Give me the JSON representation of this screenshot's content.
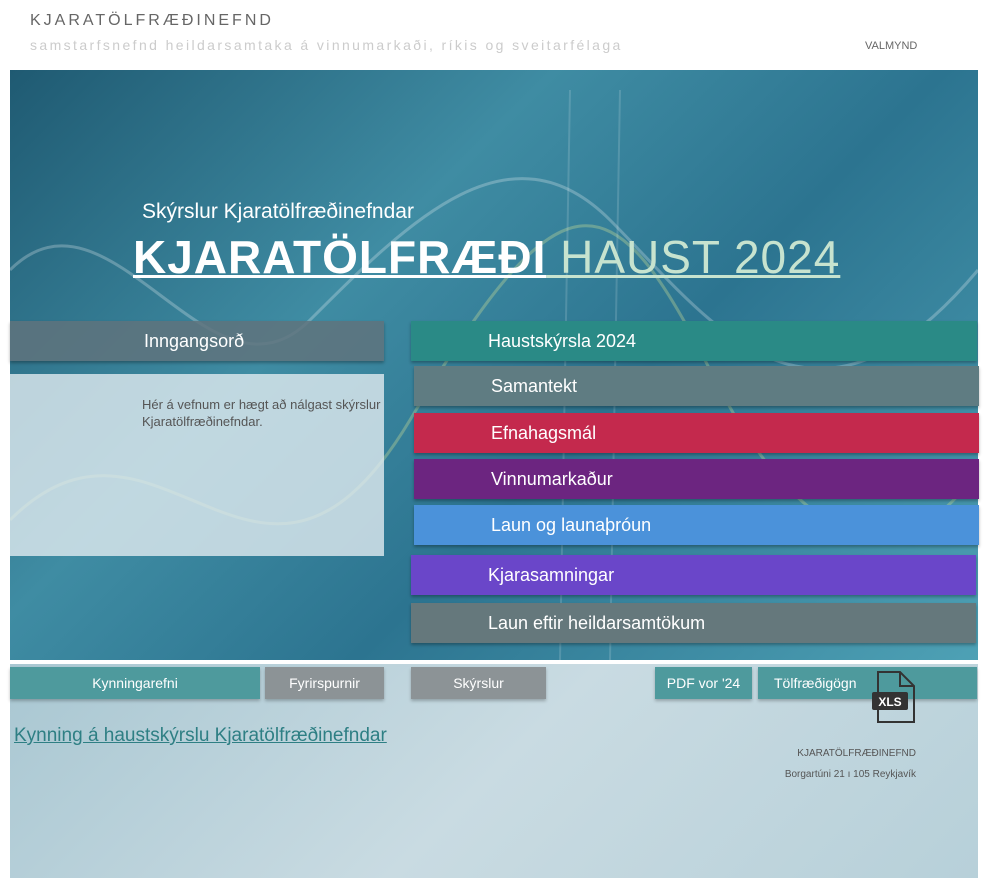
{
  "header": {
    "org": "KJARATÖLFRÆÐINEFND",
    "subtitle": "samstarfsnefnd heildarsamtaka á vinnumarkaði, ríkis og sveitarfélaga",
    "menu": "VALMYND"
  },
  "hero": {
    "kicker": "Skýrslur Kjaratölfræðinefndar",
    "title_main": "KJARATÖLFRÆÐI",
    "title_rest": " HAUST 2024"
  },
  "intro": {
    "label": "Inngangsorð",
    "text": "Hér á vefnum er hægt að nálgast skýrslur Kjaratölfræðinefndar."
  },
  "sections": [
    {
      "label": "Haustskýrsla 2024",
      "color": "#2a8a86"
    },
    {
      "label": "Samantekt",
      "color": "#5f7c82"
    },
    {
      "label": "Efnahagsmál",
      "color": "#c4294d"
    },
    {
      "label": "Vinnumarkaður",
      "color": "#6c2580"
    },
    {
      "label": "Laun og launaþróun",
      "color": "#4b92da"
    },
    {
      "label": "Kjarasamningar",
      "color": "#6a46c9"
    },
    {
      "label": "Laun eftir heildarsamtökum",
      "color": "#65787c"
    }
  ],
  "nav": {
    "kynningarefni": "Kynningarefni",
    "fyrirspurnir": "Fyrirspurnir",
    "skyrslur": "Skýrslur",
    "pdf": "PDF vor '24",
    "tolfraedigogn": "Tölfræðigögn",
    "xls": "XLS"
  },
  "link": "Kynning á haustskýrslu Kjaratölfræðinefndar",
  "footer": {
    "name": "KJARATÖLFRÆÐINEFND",
    "address": "Borgartúni 21 ı 105 Reykjavík"
  }
}
